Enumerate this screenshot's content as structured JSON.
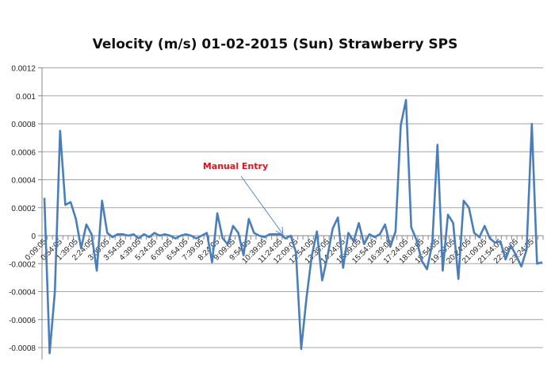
{
  "chart_data": {
    "type": "line",
    "title": "Velocity (m/s) 01-02-2015 (Sun) Strawberry SPS",
    "xlabel": "",
    "ylabel": "",
    "ylim": [
      -0.0008,
      0.0012
    ],
    "y_ticks": [
      "0.0012",
      "0.001",
      "0.0008",
      "0.0006",
      "0.0004",
      "0.0002",
      "0",
      "-0.0002",
      "-0.0004",
      "-0.0006",
      "-0.0008"
    ],
    "y_tick_values": [
      0.0012,
      0.001,
      0.0008,
      0.0006,
      0.0004,
      0.0002,
      0,
      -0.0002,
      -0.0004,
      -0.0006,
      -0.0008
    ],
    "grid": true,
    "legend": null,
    "x_tick_labels": [
      "0:09:05",
      "0:54:05",
      "1:39:05",
      "2:24:05",
      "3:09:05",
      "3:54:05",
      "4:39:05",
      "5:24:05",
      "6:09:05",
      "6:54:05",
      "7:39:05",
      "8:24:05",
      "9:09:05",
      "9:54:05",
      "10:39:05",
      "11:24:05",
      "12:09:05",
      "12:54:05",
      "13:39:05",
      "14:24:05",
      "15:09:05",
      "15:54:05",
      "16:39:05",
      "17:24:05",
      "18:09:05",
      "18:54:05",
      "19:39:05",
      "20:24:05",
      "21:09:05",
      "21:54:05",
      "22:39:05",
      "23:24:05"
    ],
    "x_interval_minutes": 15,
    "series": [
      {
        "name": "Velocity (m/s)",
        "color": "#4a7ebb",
        "values": [
          0.00027,
          -0.00084,
          -0.0004,
          0.00075,
          0.00022,
          0.00024,
          0.00012,
          -9e-05,
          8e-05,
          1e-05,
          -0.00025,
          0.00025,
          2e-05,
          -1e-05,
          1e-05,
          1e-05,
          0.0,
          1e-05,
          -2e-05,
          1e-05,
          -1e-05,
          2e-05,
          0.0,
          1e-05,
          0.0,
          -2e-05,
          0.0,
          1e-05,
          0.0,
          -2e-05,
          0.0,
          2e-05,
          -0.00019,
          0.00016,
          -2e-05,
          -6e-05,
          7e-05,
          2e-05,
          -0.00014,
          0.00012,
          2e-05,
          0.0,
          -1e-05,
          1e-05,
          1e-05,
          1e-05,
          -2e-05,
          0.0,
          -0.00012,
          -0.00081,
          -0.00045,
          -0.00015,
          3e-05,
          -0.00032,
          -0.00015,
          5e-05,
          0.00013,
          -0.00023,
          2e-05,
          -4e-05,
          9e-05,
          -6e-05,
          1e-05,
          -1e-05,
          1e-05,
          8e-05,
          -8e-05,
          3e-05,
          0.00079,
          0.00097,
          6e-05,
          -3e-05,
          -0.00018,
          -0.00024,
          -6e-05,
          0.00065,
          -0.00025,
          0.00015,
          9e-05,
          -0.00031,
          0.00025,
          0.0002,
          2e-05,
          -1e-05,
          7e-05,
          -2e-05,
          -5e-05,
          -4e-05,
          -0.00017,
          -7e-05,
          -0.00014,
          -0.00022,
          -0.0001,
          0.0008,
          -0.0002,
          -0.00019
        ]
      }
    ],
    "annotations": [
      {
        "text": "Manual Entry",
        "color": "#e8121b",
        "arrow_to_time": "12:09:05"
      }
    ]
  },
  "annotation": {
    "label": "Manual Entry"
  }
}
